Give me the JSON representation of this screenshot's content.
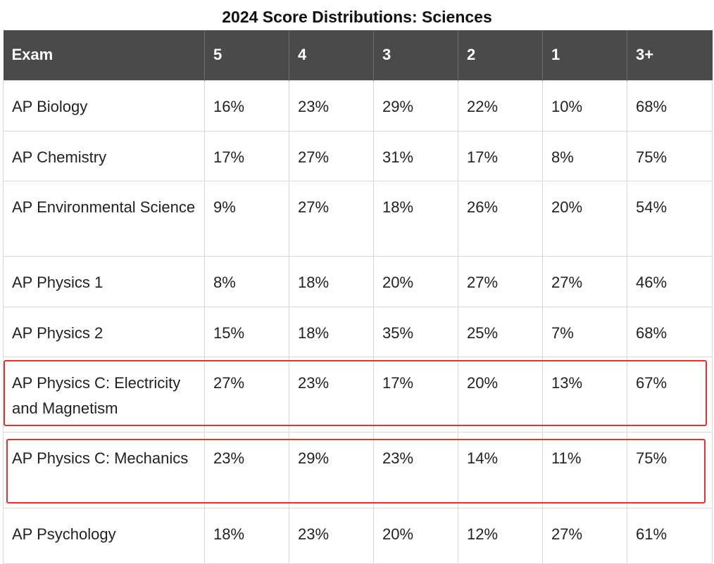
{
  "title": "2024 Score Distributions: Sciences",
  "table": {
    "headers": [
      "Exam",
      "5",
      "4",
      "3",
      "2",
      "1",
      "3+"
    ],
    "rows": [
      {
        "exam": "AP Biology",
        "s5": "16%",
        "s4": "23%",
        "s3": "29%",
        "s2": "22%",
        "s1": "10%",
        "s3plus": "68%"
      },
      {
        "exam": "AP Chemistry",
        "s5": "17%",
        "s4": "27%",
        "s3": "31%",
        "s2": "17%",
        "s1": "8%",
        "s3plus": "75%"
      },
      {
        "exam": "AP Environmental Science",
        "s5": "9%",
        "s4": "27%",
        "s3": "18%",
        "s2": "26%",
        "s1": "20%",
        "s3plus": "54%"
      },
      {
        "exam": "AP Physics 1",
        "s5": "8%",
        "s4": "18%",
        "s3": "20%",
        "s2": "27%",
        "s1": "27%",
        "s3plus": "46%"
      },
      {
        "exam": "AP Physics 2",
        "s5": "15%",
        "s4": "18%",
        "s3": "35%",
        "s2": "25%",
        "s1": "7%",
        "s3plus": "68%"
      },
      {
        "exam": "AP Physics C: Electricity and Magnetism",
        "s5": "27%",
        "s4": "23%",
        "s3": "17%",
        "s2": "20%",
        "s1": "13%",
        "s3plus": "67%"
      },
      {
        "exam": "AP Physics C: Mechanics",
        "s5": "23%",
        "s4": "29%",
        "s3": "23%",
        "s2": "14%",
        "s1": "11%",
        "s3plus": "75%"
      },
      {
        "exam": "AP Psychology",
        "s5": "18%",
        "s4": "23%",
        "s3": "20%",
        "s2": "12%",
        "s1": "27%",
        "s3plus": "61%"
      }
    ]
  },
  "colors": {
    "header_bg": "#4a4a4a",
    "header_text": "#ffffff",
    "highlight_border": "#e8312f",
    "cell_border": "#d8d8d8"
  }
}
